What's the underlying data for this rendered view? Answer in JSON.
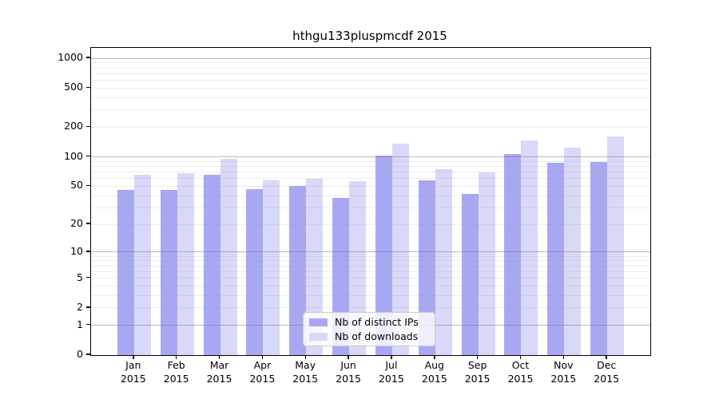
{
  "title": "hthgu133pluspmcdf 2015",
  "legend": {
    "items": [
      {
        "label": "Nb of distinct IPs",
        "color": "#a8a8f2"
      },
      {
        "label": "Nb of downloads",
        "color": "#d8d8f8"
      }
    ]
  },
  "y_axis": {
    "tick_labels": [
      "0",
      "1",
      "2",
      "5",
      "10",
      "20",
      "50",
      "100",
      "200",
      "500",
      "1000"
    ]
  },
  "x_axis": {
    "months": [
      "Jan",
      "Feb",
      "Mar",
      "Apr",
      "May",
      "Jun",
      "Jul",
      "Aug",
      "Sep",
      "Oct",
      "Nov",
      "Dec"
    ],
    "year": "2015"
  },
  "chart_data": {
    "type": "bar",
    "title": "hthgu133pluspmcdf 2015",
    "categories": [
      "Jan 2015",
      "Feb 2015",
      "Mar 2015",
      "Apr 2015",
      "May 2015",
      "Jun 2015",
      "Jul 2015",
      "Aug 2015",
      "Sep 2015",
      "Oct 2015",
      "Nov 2015",
      "Dec 2015"
    ],
    "series": [
      {
        "name": "Nb of distinct IPs",
        "color": "#a8a8f2",
        "values": [
          46,
          46,
          65,
          47,
          50,
          38,
          102,
          57,
          42,
          107,
          87,
          89
        ]
      },
      {
        "name": "Nb of downloads",
        "color": "#d8d8f8",
        "values": [
          65,
          68,
          96,
          57,
          60,
          56,
          136,
          75,
          69,
          147,
          124,
          161
        ]
      }
    ],
    "y_ticks": [
      0,
      1,
      2,
      5,
      10,
      20,
      50,
      100,
      200,
      500,
      1000
    ],
    "y_scale": "log10(value+1)",
    "ylim": [
      0,
      1270
    ],
    "grid": "horizontal; gray lines at decades 1/10/100/1000, faint minor lines at 2-9 per decade, drawn over bars",
    "legend_position": "inside lower-center"
  }
}
